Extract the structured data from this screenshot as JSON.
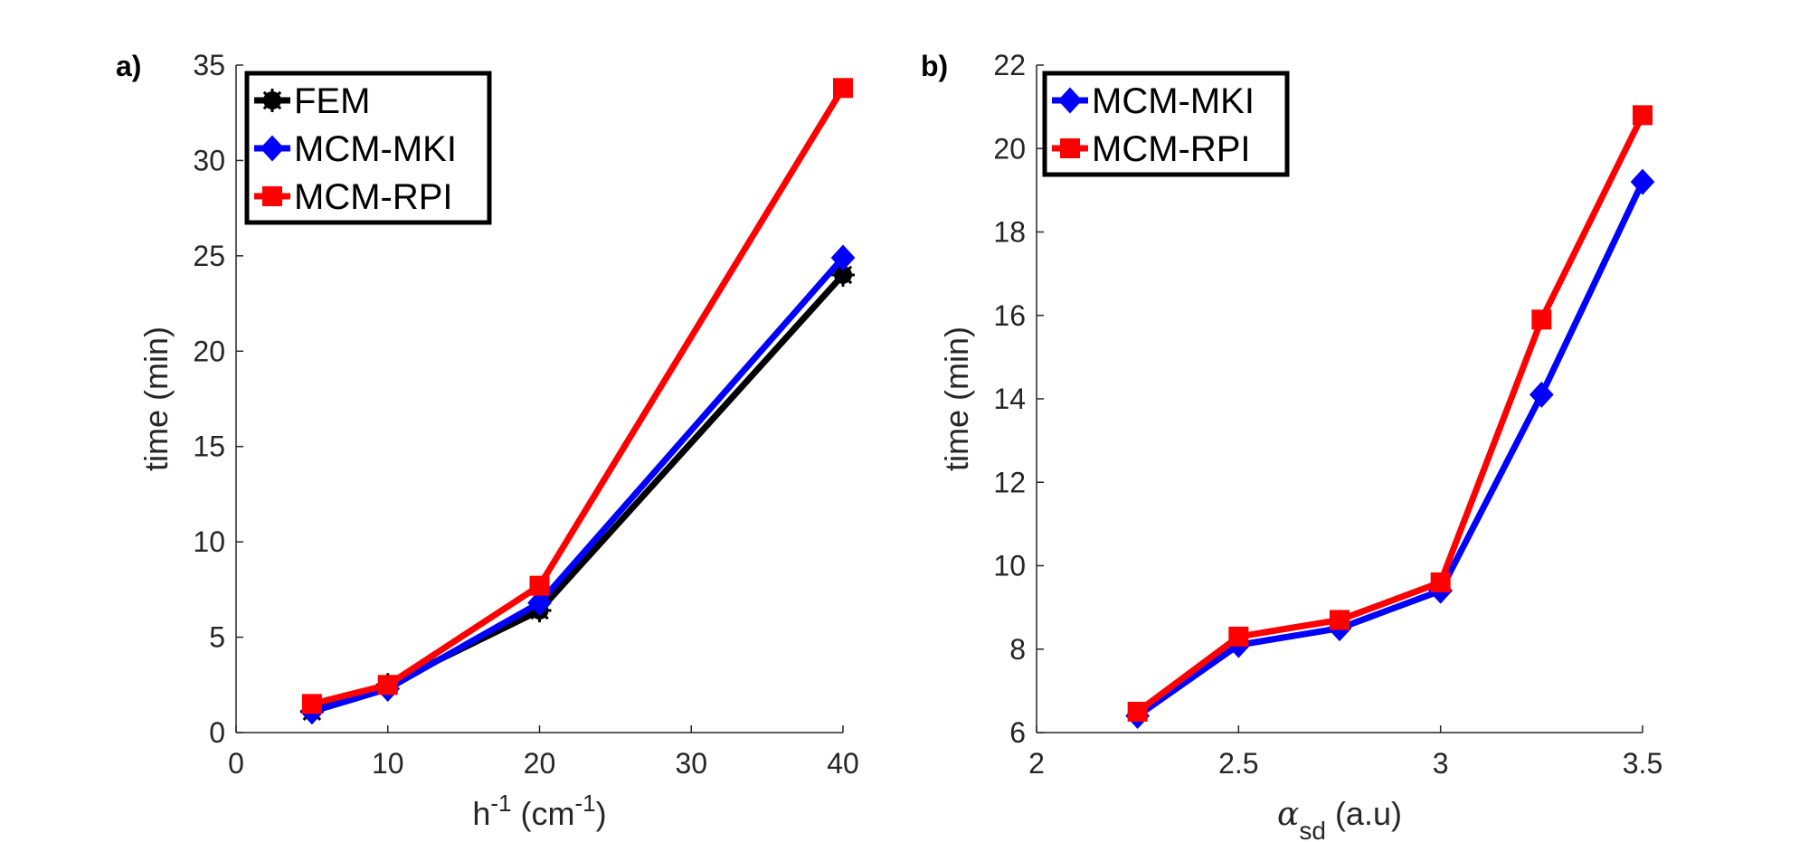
{
  "chart_data": [
    {
      "type": "line",
      "panel_label": "a)",
      "xlabel": "h",
      "xlabel_sup": "-1",
      "xlabel_units_pre": "(cm",
      "xlabel_units_sup": "-1",
      "xlabel_units_post": ")",
      "ylabel": "time (min)",
      "xlim": [
        0,
        40
      ],
      "ylim": [
        0,
        35
      ],
      "xticks": [
        0,
        10,
        20,
        30,
        40
      ],
      "xtick_labels": [
        "0",
        "10",
        "20",
        "30",
        "40"
      ],
      "yticks": [
        0,
        5,
        10,
        15,
        20,
        25,
        30,
        35
      ],
      "ytick_labels": [
        "0",
        "5",
        "10",
        "15",
        "20",
        "25",
        "30",
        "35"
      ],
      "grid": false,
      "legend": "top-left",
      "x": [
        5,
        10,
        20,
        40
      ],
      "series": [
        {
          "name": "FEM",
          "color": "#000000",
          "marker": "star",
          "values": [
            1.1,
            2.5,
            6.4,
            24.0
          ]
        },
        {
          "name": "MCM-MKI",
          "color": "#0000ff",
          "marker": "diamond",
          "values": [
            1.1,
            2.3,
            6.8,
            24.9
          ]
        },
        {
          "name": "MCM-RPI",
          "color": "#ff0000",
          "marker": "square",
          "values": [
            1.5,
            2.5,
            7.7,
            33.8
          ]
        }
      ]
    },
    {
      "type": "line",
      "panel_label": "b)",
      "xlabel_symbol": "α",
      "xlabel_sub": "sd",
      "xlabel_units": "(a.u)",
      "ylabel": "time (min)",
      "xlim": [
        2,
        3.5
      ],
      "ylim": [
        6,
        22
      ],
      "xticks": [
        2,
        2.5,
        3,
        3.5
      ],
      "xtick_labels": [
        "2",
        "2.5",
        "3",
        "3.5"
      ],
      "yticks": [
        6,
        8,
        10,
        12,
        14,
        16,
        18,
        20,
        22
      ],
      "ytick_labels": [
        "6",
        "8",
        "10",
        "12",
        "14",
        "16",
        "18",
        "20",
        "22"
      ],
      "grid": false,
      "legend": "top-left",
      "x": [
        2.25,
        2.5,
        2.75,
        3.0,
        3.25,
        3.5
      ],
      "series": [
        {
          "name": "MCM-MKI",
          "color": "#0000ff",
          "marker": "diamond",
          "values": [
            6.4,
            8.1,
            8.5,
            9.4,
            14.1,
            19.2
          ]
        },
        {
          "name": "MCM-RPI",
          "color": "#ff0000",
          "marker": "square",
          "values": [
            6.5,
            8.3,
            8.7,
            9.6,
            15.9,
            20.8
          ]
        }
      ]
    }
  ]
}
